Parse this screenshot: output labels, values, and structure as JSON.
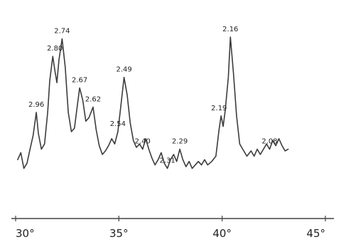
{
  "chart_data": {
    "type": "line",
    "title": "",
    "xlabel": "",
    "ylabel": "",
    "xlim": [
      30,
      45
    ],
    "ylim": [
      0,
      100
    ],
    "grid": false,
    "ticks": [
      {
        "x": 30,
        "label": "30°"
      },
      {
        "x": 35,
        "label": "35°"
      },
      {
        "x": 40,
        "label": "40°"
      },
      {
        "x": 45,
        "label": "45°"
      }
    ],
    "series": [
      {
        "points": [
          [
            30.1,
            21
          ],
          [
            30.25,
            25
          ],
          [
            30.4,
            16
          ],
          [
            30.55,
            19
          ],
          [
            30.7,
            27
          ],
          [
            30.85,
            35
          ],
          [
            31.0,
            48
          ],
          [
            31.1,
            36
          ],
          [
            31.25,
            27
          ],
          [
            31.4,
            30
          ],
          [
            31.55,
            48
          ],
          [
            31.65,
            66
          ],
          [
            31.8,
            80
          ],
          [
            31.9,
            72
          ],
          [
            32.0,
            65
          ],
          [
            32.1,
            78
          ],
          [
            32.25,
            90
          ],
          [
            32.4,
            74
          ],
          [
            32.55,
            48
          ],
          [
            32.7,
            37
          ],
          [
            32.85,
            39
          ],
          [
            33.0,
            53
          ],
          [
            33.1,
            62
          ],
          [
            33.25,
            55
          ],
          [
            33.4,
            43
          ],
          [
            33.55,
            45
          ],
          [
            33.75,
            51
          ],
          [
            33.9,
            38
          ],
          [
            34.05,
            29
          ],
          [
            34.2,
            24
          ],
          [
            34.35,
            26
          ],
          [
            34.5,
            29
          ],
          [
            34.65,
            33
          ],
          [
            34.8,
            30
          ],
          [
            34.95,
            37
          ],
          [
            35.1,
            52
          ],
          [
            35.25,
            68
          ],
          [
            35.4,
            58
          ],
          [
            35.55,
            42
          ],
          [
            35.7,
            32
          ],
          [
            35.85,
            28
          ],
          [
            36.0,
            30
          ],
          [
            36.15,
            27
          ],
          [
            36.3,
            33
          ],
          [
            36.45,
            27
          ],
          [
            36.6,
            22
          ],
          [
            36.75,
            18
          ],
          [
            36.9,
            21
          ],
          [
            37.05,
            25
          ],
          [
            37.2,
            19
          ],
          [
            37.35,
            16
          ],
          [
            37.5,
            21
          ],
          [
            37.65,
            24
          ],
          [
            37.8,
            20
          ],
          [
            37.95,
            27
          ],
          [
            38.1,
            21
          ],
          [
            38.25,
            17
          ],
          [
            38.4,
            20
          ],
          [
            38.55,
            16
          ],
          [
            38.7,
            18
          ],
          [
            38.85,
            20
          ],
          [
            39.0,
            18
          ],
          [
            39.15,
            21
          ],
          [
            39.3,
            18
          ],
          [
            39.5,
            20
          ],
          [
            39.7,
            23
          ],
          [
            39.85,
            38
          ],
          [
            39.95,
            46
          ],
          [
            40.05,
            40
          ],
          [
            40.15,
            49
          ],
          [
            40.3,
            68
          ],
          [
            40.4,
            91
          ],
          [
            40.55,
            70
          ],
          [
            40.7,
            46
          ],
          [
            40.85,
            30
          ],
          [
            41.0,
            27
          ],
          [
            41.2,
            23
          ],
          [
            41.4,
            26
          ],
          [
            41.55,
            23
          ],
          [
            41.7,
            27
          ],
          [
            41.85,
            24
          ],
          [
            42.0,
            27
          ],
          [
            42.15,
            30
          ],
          [
            42.3,
            27
          ],
          [
            42.45,
            32
          ],
          [
            42.6,
            29
          ],
          [
            42.75,
            33
          ],
          [
            42.9,
            29
          ],
          [
            43.05,
            26
          ],
          [
            43.2,
            27
          ]
        ]
      }
    ],
    "annotations": [
      {
        "x": 31.0,
        "y": 48,
        "text": "2.96"
      },
      {
        "x": 31.9,
        "y": 80,
        "text": "2.80"
      },
      {
        "x": 32.25,
        "y": 90,
        "text": "2.74"
      },
      {
        "x": 33.1,
        "y": 62,
        "text": "2.67"
      },
      {
        "x": 33.75,
        "y": 51,
        "text": "2.62"
      },
      {
        "x": 34.95,
        "y": 37,
        "text": "2.54"
      },
      {
        "x": 35.25,
        "y": 68,
        "text": "2.49"
      },
      {
        "x": 36.15,
        "y": 27,
        "text": "2.40"
      },
      {
        "x": 37.35,
        "y": 16,
        "text": "2.31"
      },
      {
        "x": 37.95,
        "y": 27,
        "text": "2.29"
      },
      {
        "x": 39.85,
        "y": 46,
        "text": "2.19"
      },
      {
        "x": 40.4,
        "y": 91,
        "text": "2.16"
      },
      {
        "x": 42.3,
        "y": 27,
        "text": "2.08"
      }
    ]
  }
}
